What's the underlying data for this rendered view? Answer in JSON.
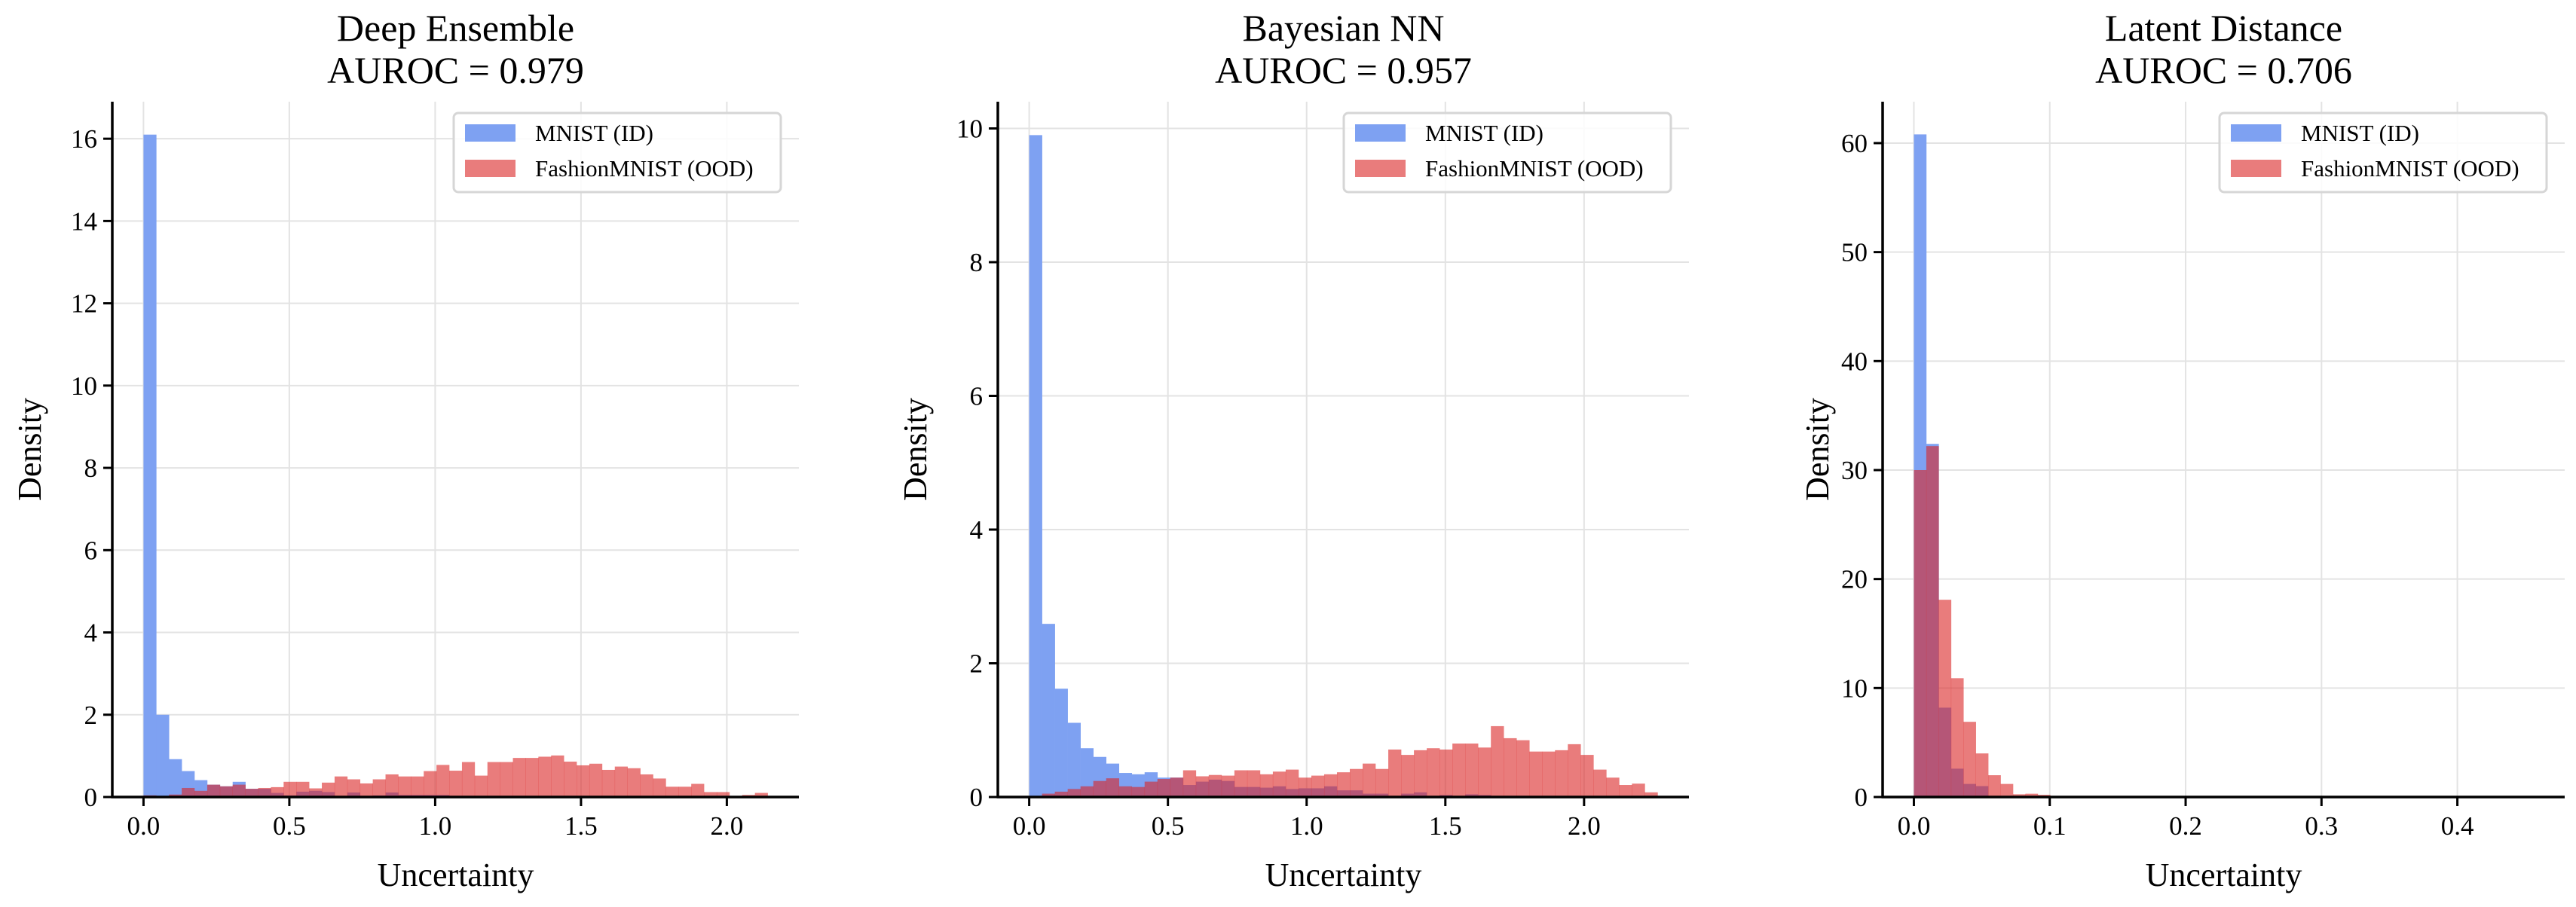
{
  "colors": {
    "id": "#7ea1f2",
    "ood": "#da2525",
    "ood_opacity": 0.6
  },
  "chart_data": [
    {
      "type": "bar",
      "title": "Deep Ensemble",
      "subtitle": "AUROC = 0.979",
      "xlabel": "Uncertainty",
      "ylabel": "Density",
      "xlim": [
        -0.107,
        2.247
      ],
      "ylim": [
        0,
        16.9
      ],
      "xticks": [
        0.0,
        0.5,
        1.0,
        1.5,
        2.0
      ],
      "xtick_labels": [
        "0.0",
        "0.5",
        "1.0",
        "1.5",
        "2.0"
      ],
      "yticks": [
        0,
        2,
        4,
        6,
        8,
        10,
        12,
        14,
        16
      ],
      "ytick_labels": [
        "0",
        "2",
        "4",
        "6",
        "8",
        "10",
        "12",
        "14",
        "16"
      ],
      "grid": true,
      "legend": "top-right",
      "bin_range": [
        0,
        2.14
      ],
      "series": [
        {
          "name": "MNIST (ID)",
          "values": [
            16.1,
            2.0,
            0.92,
            0.63,
            0.41,
            0.3,
            0.26,
            0.37,
            0.2,
            0.2,
            0.1,
            0.04,
            0.13,
            0.15,
            0.12,
            0.02,
            0.11,
            0.02,
            0.04,
            0.11,
            0.05,
            0.05,
            0.05,
            0.05,
            0.01,
            0.01,
            0.02,
            0.01,
            0.01,
            0.01,
            0.01,
            0.01,
            0,
            0,
            0,
            0,
            0,
            0,
            0,
            0,
            0,
            0,
            0,
            0,
            0,
            0,
            0,
            0,
            0
          ]
        },
        {
          "name": "FashionMNIST (OOD)",
          "values": [
            0.04,
            0.02,
            0.06,
            0.22,
            0.15,
            0.3,
            0.26,
            0.3,
            0.2,
            0.22,
            0.24,
            0.37,
            0.37,
            0.21,
            0.35,
            0.5,
            0.43,
            0.33,
            0.43,
            0.55,
            0.5,
            0.5,
            0.63,
            0.78,
            0.64,
            0.85,
            0.52,
            0.85,
            0.85,
            0.95,
            0.95,
            0.98,
            1.01,
            0.86,
            0.77,
            0.81,
            0.66,
            0.74,
            0.7,
            0.55,
            0.45,
            0.25,
            0.25,
            0.32,
            0.12,
            0.12,
            0.02,
            0.05,
            0.1
          ]
        }
      ]
    },
    {
      "type": "bar",
      "title": "Bayesian NN",
      "subtitle": "AUROC = 0.957",
      "xlabel": "Uncertainty",
      "ylabel": "Density",
      "xlim": [
        -0.113,
        2.378
      ],
      "ylim": [
        0,
        10.4
      ],
      "xticks": [
        0.0,
        0.5,
        1.0,
        1.5,
        2.0
      ],
      "xtick_labels": [
        "0.0",
        "0.5",
        "1.0",
        "1.5",
        "2.0"
      ],
      "yticks": [
        0,
        2,
        4,
        6,
        8,
        10
      ],
      "ytick_labels": [
        "0",
        "2",
        "4",
        "6",
        "8",
        "10"
      ],
      "grid": true,
      "legend": "top-right",
      "bin_range": [
        0,
        2.265
      ],
      "series": [
        {
          "name": "MNIST (ID)",
          "values": [
            9.9,
            2.59,
            1.62,
            1.11,
            0.73,
            0.6,
            0.5,
            0.36,
            0.34,
            0.37,
            0.29,
            0.29,
            0.18,
            0.23,
            0.26,
            0.24,
            0.15,
            0.15,
            0.14,
            0.16,
            0.12,
            0.13,
            0.13,
            0.16,
            0.1,
            0.1,
            0.05,
            0.05,
            0,
            0.05,
            0.07,
            0.01,
            0.03,
            0.01,
            0.04,
            0.03,
            0.01,
            0.01,
            0,
            0,
            0,
            0,
            0,
            0,
            0,
            0,
            0,
            0,
            0
          ]
        },
        {
          "name": "FashionMNIST (OOD)",
          "values": [
            0.01,
            0.05,
            0.08,
            0.12,
            0.16,
            0.24,
            0.28,
            0.16,
            0.15,
            0.23,
            0.27,
            0.29,
            0.4,
            0.31,
            0.33,
            0.32,
            0.4,
            0.4,
            0.34,
            0.38,
            0.41,
            0.29,
            0.32,
            0.34,
            0.37,
            0.42,
            0.5,
            0.42,
            0.71,
            0.63,
            0.7,
            0.73,
            0.71,
            0.8,
            0.8,
            0.74,
            1.06,
            0.88,
            0.85,
            0.68,
            0.68,
            0.7,
            0.79,
            0.63,
            0.41,
            0.29,
            0.18,
            0.2,
            0.07
          ]
        }
      ]
    },
    {
      "type": "bar",
      "title": "Latent Distance",
      "subtitle": "AUROC = 0.706",
      "xlabel": "Uncertainty",
      "ylabel": "Density",
      "xlim": [
        -0.023,
        0.479
      ],
      "ylim": [
        0,
        63.8
      ],
      "xticks": [
        0.0,
        0.1,
        0.2,
        0.3,
        0.4
      ],
      "xtick_labels": [
        "0.0",
        "0.1",
        "0.2",
        "0.3",
        "0.4"
      ],
      "yticks": [
        0,
        10,
        20,
        30,
        40,
        50,
        60
      ],
      "ytick_labels": [
        "0",
        "10",
        "20",
        "30",
        "40",
        "50",
        "60"
      ],
      "grid": true,
      "legend": "top-right",
      "bin_range": [
        0,
        0.456
      ],
      "series": [
        {
          "name": "MNIST (ID)",
          "values": [
            60.8,
            32.4,
            8.2,
            2.6,
            1.2,
            1.0,
            0.1,
            0.1,
            0.05,
            0.05,
            0.05,
            0.03,
            0.02,
            0.02,
            0.02,
            0.01,
            0.01,
            0.01,
            0,
            0,
            0,
            0,
            0,
            0,
            0,
            0,
            0,
            0,
            0,
            0,
            0,
            0,
            0,
            0,
            0,
            0,
            0,
            0,
            0,
            0,
            0,
            0,
            0,
            0,
            0,
            0,
            0,
            0,
            0,
            0
          ]
        },
        {
          "name": "FashionMNIST (OOD)",
          "values": [
            30,
            32.2,
            18.1,
            10.9,
            6.9,
            4.0,
            2.0,
            1.2,
            0.25,
            0.3,
            0.2,
            0.08,
            0.05,
            0.05,
            0.04,
            0.03,
            0.03,
            0.02,
            0.02,
            0.02,
            0.01,
            0.01,
            0.01,
            0.01,
            0.01,
            0.01,
            0.01,
            0,
            0,
            0,
            0,
            0,
            0,
            0,
            0,
            0,
            0,
            0,
            0,
            0,
            0,
            0,
            0,
            0,
            0,
            0,
            0,
            0,
            0,
            0
          ]
        }
      ]
    }
  ]
}
